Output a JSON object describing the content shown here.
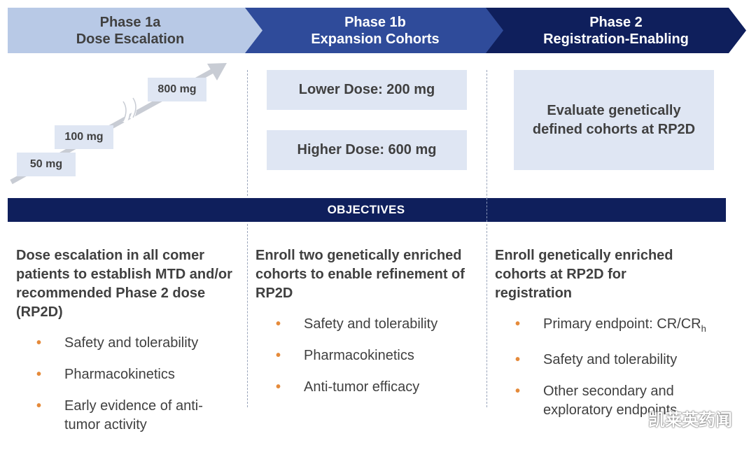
{
  "phases": [
    {
      "title": "Phase 1a",
      "subtitle": "Dose Escalation"
    },
    {
      "title": "Phase 1b",
      "subtitle": "Expansion Cohorts"
    },
    {
      "title": "Phase 2",
      "subtitle": "Registration-Enabling"
    }
  ],
  "dose_steps": [
    "50 mg",
    "100 mg",
    "800 mg"
  ],
  "expansion_boxes": [
    "Lower Dose: 200 mg",
    "Higher Dose: 600 mg"
  ],
  "phase2_box": "Evaluate genetically defined cohorts at RP2D",
  "objectives_label": "OBJECTIVES",
  "columns": [
    {
      "heading": "Dose escalation in all comer patients to establish MTD and/or recommended Phase 2 dose (RP2D)",
      "bullets": [
        "Safety and tolerability",
        "Pharmacokinetics",
        "Early evidence of anti-tumor activity"
      ]
    },
    {
      "heading": "Enroll two genetically enriched cohorts to enable refinement of RP2D",
      "bullets": [
        "Safety and tolerability",
        "Pharmacokinetics",
        "Anti-tumor efficacy"
      ]
    },
    {
      "heading": "Enroll genetically enriched cohorts at RP2D for registration",
      "bullets": [
        "Primary endpoint: CR/CR",
        "Safety and tolerability",
        "Other secondary and exploratory endpoints"
      ],
      "primary_subscript": "h"
    }
  ],
  "watermark": "凯莱英药闻",
  "colors": {
    "phase1a": "#b8c9e6",
    "phase1b": "#2f4b9a",
    "phase2": "#0f1f5c",
    "box": "#dfe6f3",
    "bullet": "#e58a3a",
    "text": "#404040"
  }
}
